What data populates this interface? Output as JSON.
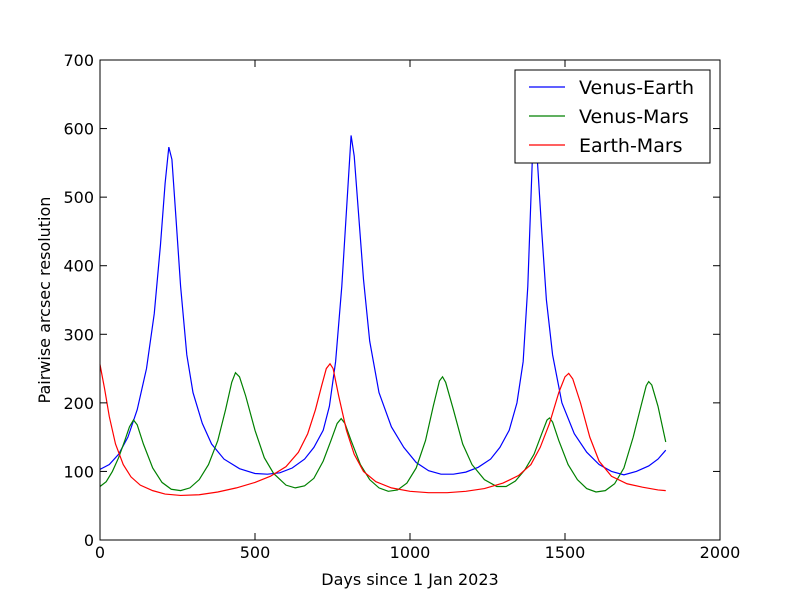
{
  "chart_data": {
    "type": "line",
    "title": "",
    "xlabel": "Days since 1 Jan 2023",
    "ylabel": "Pairwise arcsec resolution",
    "xlim": [
      0,
      2000
    ],
    "ylim": [
      0,
      700
    ],
    "xticks": [
      0,
      500,
      1000,
      1500,
      2000
    ],
    "yticks": [
      0,
      100,
      200,
      300,
      400,
      500,
      600,
      700
    ],
    "grid": false,
    "legend_position": "top-right",
    "series": [
      {
        "name": "Venus-Earth",
        "color": "#0000ff",
        "points": [
          [
            0,
            103
          ],
          [
            30,
            110
          ],
          [
            60,
            125
          ],
          [
            90,
            150
          ],
          [
            120,
            190
          ],
          [
            150,
            250
          ],
          [
            175,
            330
          ],
          [
            195,
            430
          ],
          [
            210,
            520
          ],
          [
            222,
            573
          ],
          [
            232,
            555
          ],
          [
            245,
            470
          ],
          [
            260,
            370
          ],
          [
            280,
            270
          ],
          [
            300,
            215
          ],
          [
            330,
            170
          ],
          [
            360,
            140
          ],
          [
            400,
            118
          ],
          [
            450,
            104
          ],
          [
            500,
            97
          ],
          [
            540,
            96
          ],
          [
            580,
            98
          ],
          [
            620,
            105
          ],
          [
            660,
            118
          ],
          [
            690,
            135
          ],
          [
            720,
            160
          ],
          [
            740,
            195
          ],
          [
            760,
            260
          ],
          [
            780,
            370
          ],
          [
            795,
            480
          ],
          [
            810,
            590
          ],
          [
            820,
            560
          ],
          [
            835,
            470
          ],
          [
            850,
            380
          ],
          [
            870,
            290
          ],
          [
            900,
            215
          ],
          [
            940,
            165
          ],
          [
            980,
            135
          ],
          [
            1020,
            113
          ],
          [
            1060,
            101
          ],
          [
            1100,
            96
          ],
          [
            1140,
            96
          ],
          [
            1180,
            99
          ],
          [
            1220,
            106
          ],
          [
            1260,
            118
          ],
          [
            1290,
            135
          ],
          [
            1320,
            160
          ],
          [
            1345,
            200
          ],
          [
            1365,
            260
          ],
          [
            1380,
            370
          ],
          [
            1395,
            560
          ],
          [
            1402,
            590
          ],
          [
            1410,
            560
          ],
          [
            1425,
            450
          ],
          [
            1440,
            350
          ],
          [
            1460,
            270
          ],
          [
            1490,
            200
          ],
          [
            1530,
            155
          ],
          [
            1570,
            128
          ],
          [
            1610,
            110
          ],
          [
            1650,
            100
          ],
          [
            1690,
            95
          ],
          [
            1730,
            100
          ],
          [
            1770,
            108
          ],
          [
            1800,
            118
          ],
          [
            1825,
            131
          ]
        ]
      },
      {
        "name": "Venus-Mars",
        "color": "#008000",
        "points": [
          [
            0,
            78
          ],
          [
            20,
            85
          ],
          [
            40,
            100
          ],
          [
            60,
            120
          ],
          [
            80,
            145
          ],
          [
            95,
            165
          ],
          [
            108,
            175
          ],
          [
            120,
            168
          ],
          [
            140,
            140
          ],
          [
            170,
            105
          ],
          [
            200,
            84
          ],
          [
            230,
            74
          ],
          [
            260,
            72
          ],
          [
            290,
            76
          ],
          [
            320,
            88
          ],
          [
            350,
            110
          ],
          [
            380,
            145
          ],
          [
            405,
            190
          ],
          [
            425,
            230
          ],
          [
            437,
            244
          ],
          [
            450,
            238
          ],
          [
            470,
            210
          ],
          [
            500,
            160
          ],
          [
            530,
            120
          ],
          [
            560,
            97
          ],
          [
            600,
            80
          ],
          [
            630,
            76
          ],
          [
            660,
            79
          ],
          [
            690,
            90
          ],
          [
            720,
            115
          ],
          [
            745,
            145
          ],
          [
            765,
            170
          ],
          [
            778,
            177
          ],
          [
            790,
            170
          ],
          [
            810,
            145
          ],
          [
            840,
            110
          ],
          [
            870,
            88
          ],
          [
            900,
            76
          ],
          [
            930,
            71
          ],
          [
            960,
            73
          ],
          [
            990,
            83
          ],
          [
            1020,
            105
          ],
          [
            1050,
            145
          ],
          [
            1075,
            195
          ],
          [
            1095,
            232
          ],
          [
            1105,
            238
          ],
          [
            1115,
            230
          ],
          [
            1140,
            190
          ],
          [
            1170,
            140
          ],
          [
            1200,
            110
          ],
          [
            1240,
            88
          ],
          [
            1280,
            78
          ],
          [
            1310,
            78
          ],
          [
            1340,
            86
          ],
          [
            1370,
            102
          ],
          [
            1400,
            125
          ],
          [
            1425,
            155
          ],
          [
            1442,
            175
          ],
          [
            1450,
            178
          ],
          [
            1460,
            172
          ],
          [
            1480,
            145
          ],
          [
            1510,
            110
          ],
          [
            1540,
            88
          ],
          [
            1570,
            75
          ],
          [
            1600,
            70
          ],
          [
            1630,
            72
          ],
          [
            1660,
            82
          ],
          [
            1690,
            105
          ],
          [
            1720,
            150
          ],
          [
            1745,
            195
          ],
          [
            1762,
            225
          ],
          [
            1770,
            231
          ],
          [
            1780,
            226
          ],
          [
            1800,
            195
          ],
          [
            1825,
            143
          ]
        ]
      },
      {
        "name": "Earth-Mars",
        "color": "#ff0000",
        "points": [
          [
            0,
            256
          ],
          [
            15,
            220
          ],
          [
            30,
            180
          ],
          [
            50,
            140
          ],
          [
            75,
            110
          ],
          [
            100,
            92
          ],
          [
            130,
            80
          ],
          [
            170,
            72
          ],
          [
            210,
            67
          ],
          [
            260,
            65
          ],
          [
            320,
            66
          ],
          [
            380,
            70
          ],
          [
            440,
            76
          ],
          [
            500,
            84
          ],
          [
            550,
            93
          ],
          [
            600,
            107
          ],
          [
            640,
            128
          ],
          [
            670,
            155
          ],
          [
            695,
            190
          ],
          [
            715,
            225
          ],
          [
            730,
            250
          ],
          [
            742,
            257
          ],
          [
            752,
            250
          ],
          [
            770,
            210
          ],
          [
            795,
            160
          ],
          [
            820,
            125
          ],
          [
            850,
            100
          ],
          [
            890,
            85
          ],
          [
            940,
            76
          ],
          [
            1000,
            71
          ],
          [
            1060,
            69
          ],
          [
            1120,
            69
          ],
          [
            1180,
            71
          ],
          [
            1240,
            75
          ],
          [
            1300,
            83
          ],
          [
            1350,
            94
          ],
          [
            1390,
            110
          ],
          [
            1420,
            135
          ],
          [
            1450,
            170
          ],
          [
            1480,
            215
          ],
          [
            1500,
            238
          ],
          [
            1512,
            243
          ],
          [
            1525,
            235
          ],
          [
            1550,
            200
          ],
          [
            1580,
            150
          ],
          [
            1610,
            115
          ],
          [
            1650,
            93
          ],
          [
            1700,
            82
          ],
          [
            1750,
            77
          ],
          [
            1800,
            73
          ],
          [
            1825,
            72
          ]
        ]
      }
    ]
  }
}
